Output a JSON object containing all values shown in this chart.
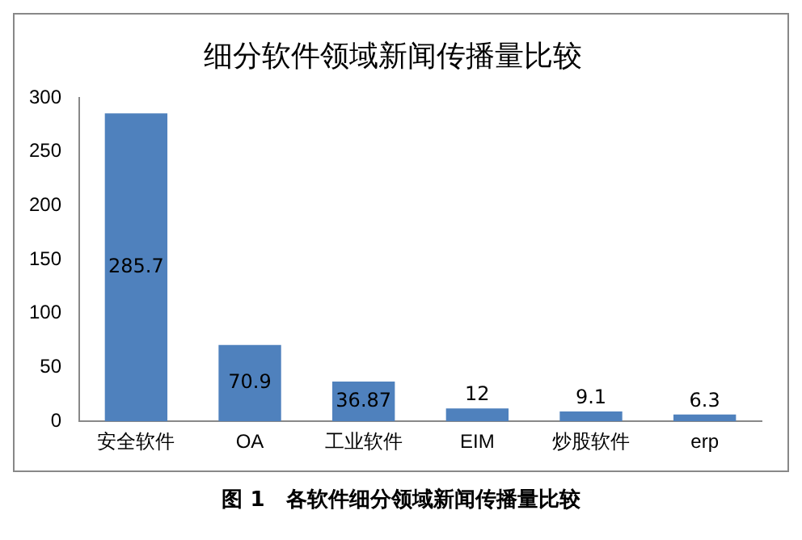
{
  "chart_data": {
    "type": "bar",
    "title": "细分软件领域新闻传播量比较",
    "categories": [
      "安全软件",
      "OA",
      "工业软件",
      "EIM",
      "炒股软件",
      "erp"
    ],
    "values": [
      285.7,
      70.9,
      36.87,
      12,
      9.1,
      6.3
    ],
    "color": "#4f81bd",
    "ylim": [
      0,
      300
    ],
    "yticks": [
      0,
      50,
      100,
      150,
      200,
      250,
      300
    ],
    "grid": false,
    "data_labels": true,
    "annotations": [
      "图 1　各软件细分领域新闻传播量比较"
    ]
  }
}
